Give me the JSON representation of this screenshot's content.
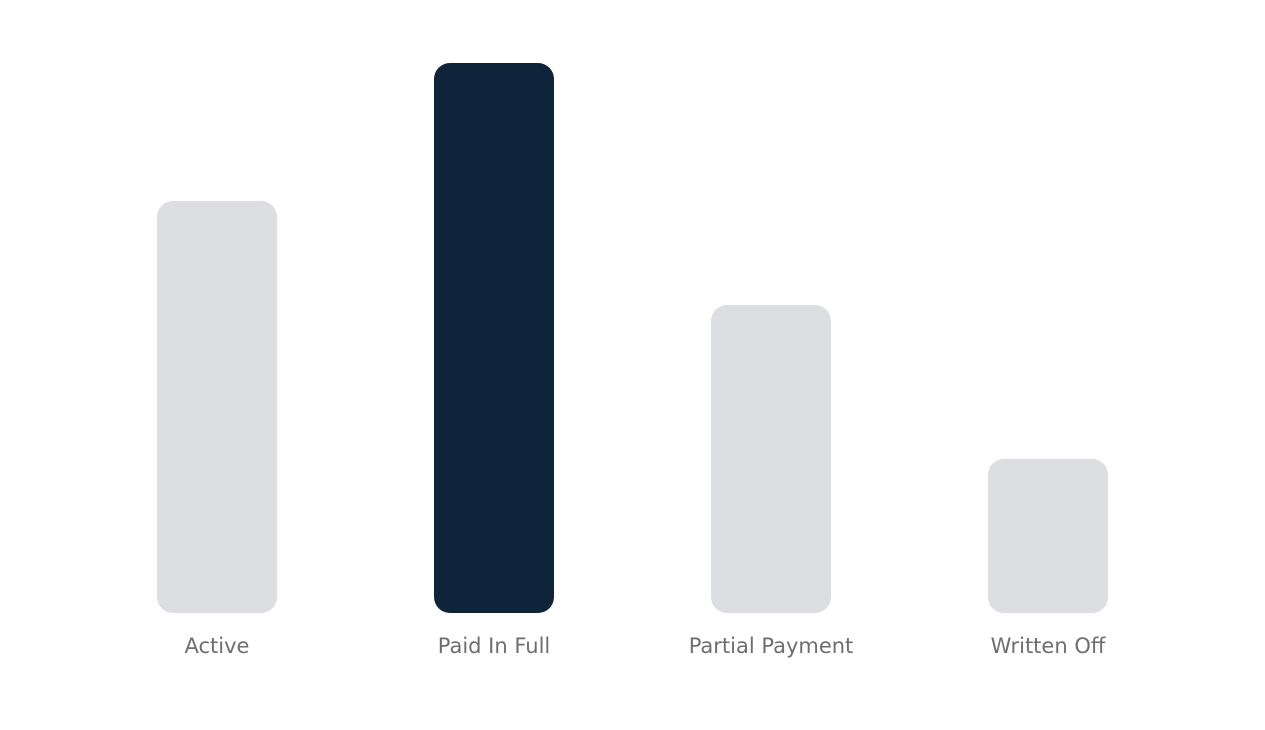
{
  "chart_data": {
    "type": "bar",
    "categories": [
      "Active",
      "Paid In Full",
      "Partial Payment",
      "Written Off"
    ],
    "values": [
      75,
      100,
      56,
      28
    ],
    "highlighted": "Paid In Full",
    "title": "",
    "xlabel": "",
    "ylabel": "",
    "ylim": [
      0,
      100
    ],
    "grid": false,
    "colors": {
      "default": "#dcdee2",
      "highlight": "#0f243b",
      "label": "#6e6e6e"
    }
  }
}
